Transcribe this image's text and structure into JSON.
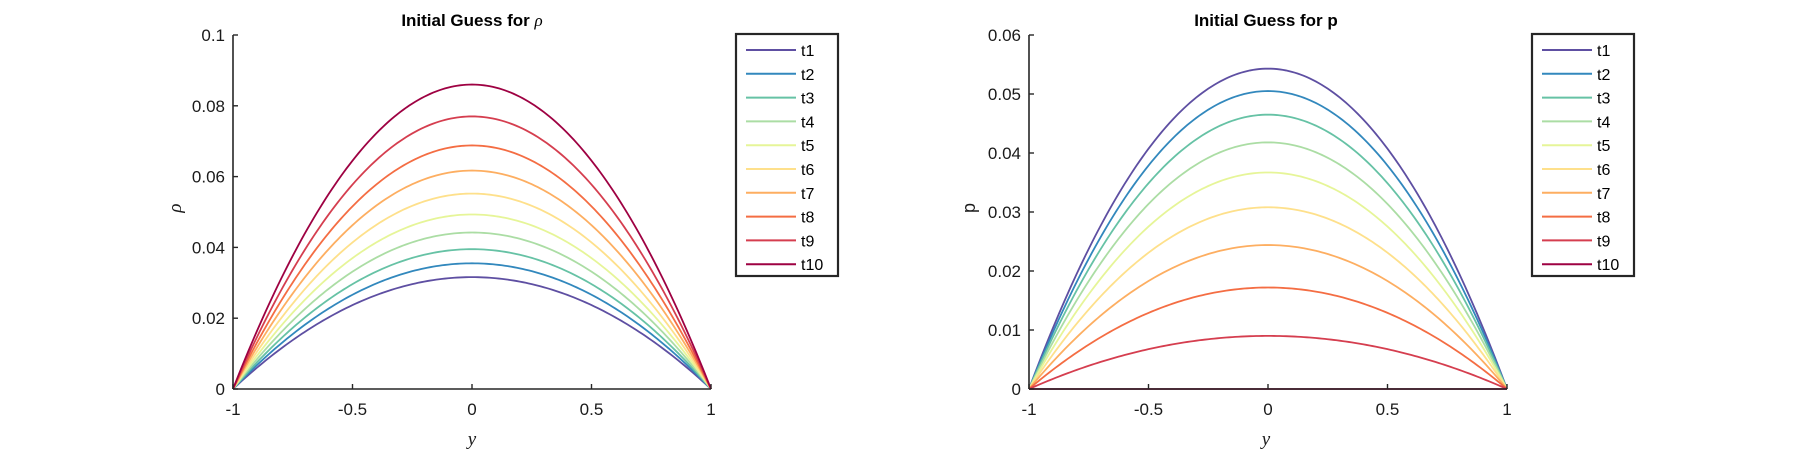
{
  "colors": [
    "#5e4fa2",
    "#3288bd",
    "#66c2a5",
    "#abdda4",
    "#e6f598",
    "#fee08b",
    "#fdae61",
    "#f46d43",
    "#d53e4f",
    "#9e0142"
  ],
  "chart_data": [
    {
      "type": "line",
      "title": "Initial Guess for ",
      "title_symbol": "ρ",
      "xlabel": "y",
      "ylabel": "ρ",
      "xlim": [
        -1,
        1
      ],
      "ylim": [
        0,
        0.1
      ],
      "xticks": [
        "-1",
        "-0.5",
        "0",
        "0.5",
        "1"
      ],
      "yticks": [
        "0",
        "0.02",
        "0.04",
        "0.06",
        "0.08",
        "0.1"
      ],
      "legend_position": "top-right",
      "curve_shape": "parabola",
      "series": [
        {
          "name": "t1",
          "x_at_zero": [
            -1,
            1
          ],
          "peak": [
            0,
            0.0316
          ]
        },
        {
          "name": "t2",
          "x_at_zero": [
            -1,
            1
          ],
          "peak": [
            0,
            0.0355
          ]
        },
        {
          "name": "t3",
          "x_at_zero": [
            -1,
            1
          ],
          "peak": [
            0,
            0.0395
          ]
        },
        {
          "name": "t4",
          "x_at_zero": [
            -1,
            1
          ],
          "peak": [
            0,
            0.0442
          ]
        },
        {
          "name": "t5",
          "x_at_zero": [
            -1,
            1
          ],
          "peak": [
            0,
            0.0493
          ]
        },
        {
          "name": "t6",
          "x_at_zero": [
            -1,
            1
          ],
          "peak": [
            0,
            0.0552
          ]
        },
        {
          "name": "t7",
          "x_at_zero": [
            -1,
            1
          ],
          "peak": [
            0,
            0.0617
          ]
        },
        {
          "name": "t8",
          "x_at_zero": [
            -1,
            1
          ],
          "peak": [
            0,
            0.0688
          ]
        },
        {
          "name": "t9",
          "x_at_zero": [
            -1,
            1
          ],
          "peak": [
            0,
            0.077
          ]
        },
        {
          "name": "t10",
          "x_at_zero": [
            -1,
            1
          ],
          "peak": [
            0,
            0.086
          ]
        }
      ]
    },
    {
      "type": "line",
      "title": "Initial Guess for p",
      "xlabel": "y",
      "ylabel": "p",
      "xlim": [
        -1,
        1
      ],
      "ylim": [
        0,
        0.06
      ],
      "xticks": [
        "-1",
        "-0.5",
        "0",
        "0.5",
        "1"
      ],
      "yticks": [
        "0",
        "0.01",
        "0.02",
        "0.03",
        "0.04",
        "0.05",
        "0.06"
      ],
      "legend_position": "top-right",
      "curve_shape": "parabola",
      "series": [
        {
          "name": "t1",
          "x_at_zero": [
            -1,
            1
          ],
          "peak": [
            0,
            0.0543
          ]
        },
        {
          "name": "t2",
          "x_at_zero": [
            -1,
            1
          ],
          "peak": [
            0,
            0.0505
          ]
        },
        {
          "name": "t3",
          "x_at_zero": [
            -1,
            1
          ],
          "peak": [
            0,
            0.0465
          ]
        },
        {
          "name": "t4",
          "x_at_zero": [
            -1,
            1
          ],
          "peak": [
            0,
            0.0418
          ]
        },
        {
          "name": "t5",
          "x_at_zero": [
            -1,
            1
          ],
          "peak": [
            0,
            0.0367
          ]
        },
        {
          "name": "t6",
          "x_at_zero": [
            -1,
            1
          ],
          "peak": [
            0,
            0.0308
          ]
        },
        {
          "name": "t7",
          "x_at_zero": [
            -1,
            1
          ],
          "peak": [
            0,
            0.0244
          ]
        },
        {
          "name": "t8",
          "x_at_zero": [
            -1,
            1
          ],
          "peak": [
            0,
            0.0172
          ]
        },
        {
          "name": "t9",
          "x_at_zero": [
            -1,
            1
          ],
          "peak": [
            0,
            0.009
          ]
        },
        {
          "name": "t10",
          "x_at_zero": [
            -1,
            1
          ],
          "peak": [
            0,
            0.0
          ]
        }
      ]
    }
  ]
}
